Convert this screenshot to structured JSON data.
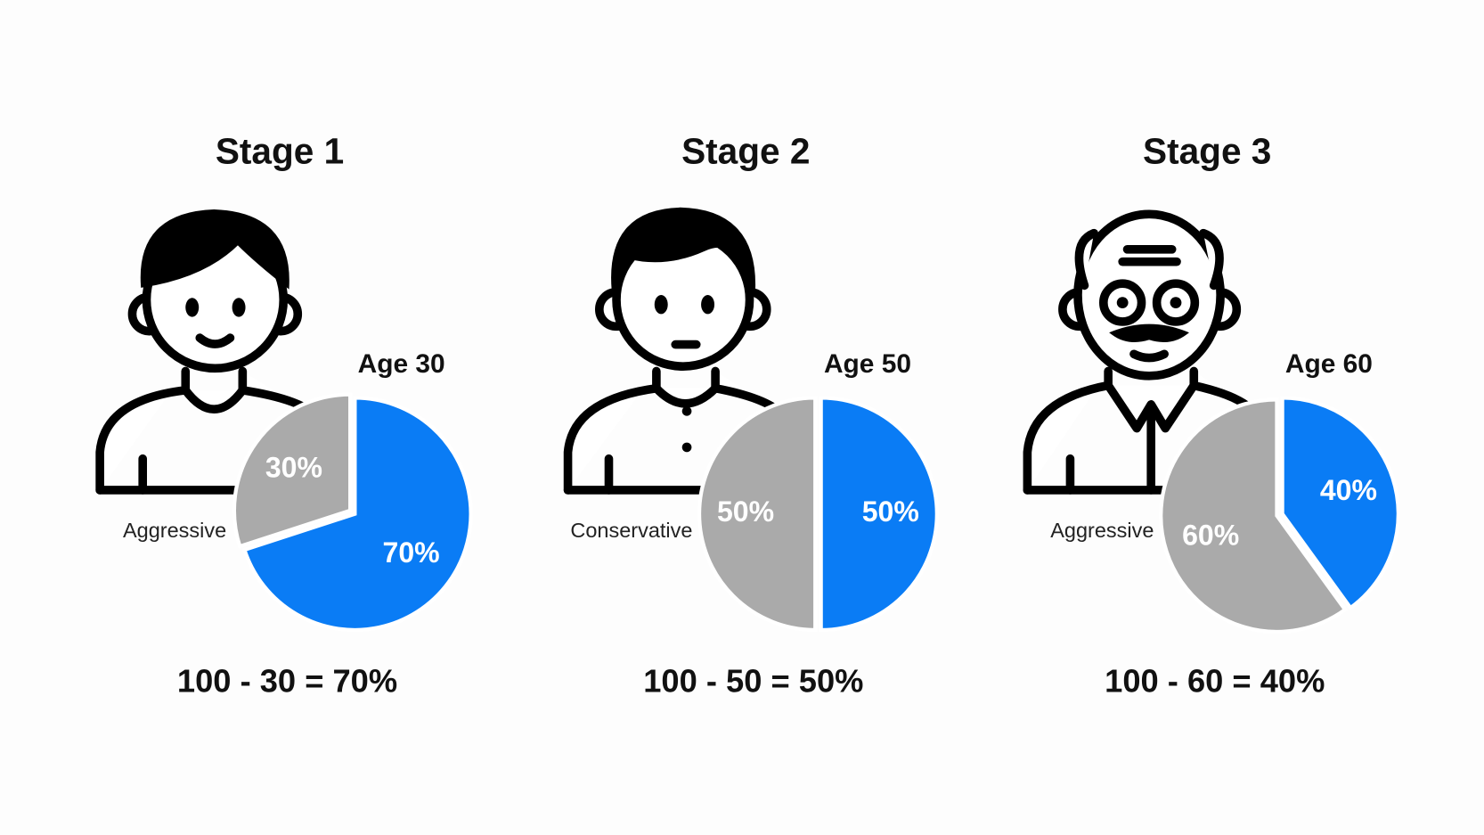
{
  "chart_data": [
    {
      "type": "pie",
      "title": "Stage 1",
      "subtitle": "Age 30",
      "label": "Aggressive",
      "annotation": "100 - 30 = 70%",
      "values": [
        30,
        70
      ],
      "value_labels": [
        "30%",
        "70%"
      ],
      "colors": [
        "#aaaaaa",
        "#0a7cf5"
      ]
    },
    {
      "type": "pie",
      "title": "Stage 2",
      "subtitle": "Age 50",
      "label": "Conservative",
      "annotation": "100 - 50 = 50%",
      "values": [
        50,
        50
      ],
      "value_labels": [
        "50%",
        "50%"
      ],
      "colors": [
        "#aaaaaa",
        "#0a7cf5"
      ]
    },
    {
      "type": "pie",
      "title": "Stage 3",
      "subtitle": "Age 60",
      "label": "Aggressive",
      "annotation": "100 - 60 = 40%",
      "values": [
        60,
        40
      ],
      "value_labels": [
        "60%",
        "40%"
      ],
      "colors": [
        "#aaaaaa",
        "#0a7cf5"
      ]
    }
  ]
}
